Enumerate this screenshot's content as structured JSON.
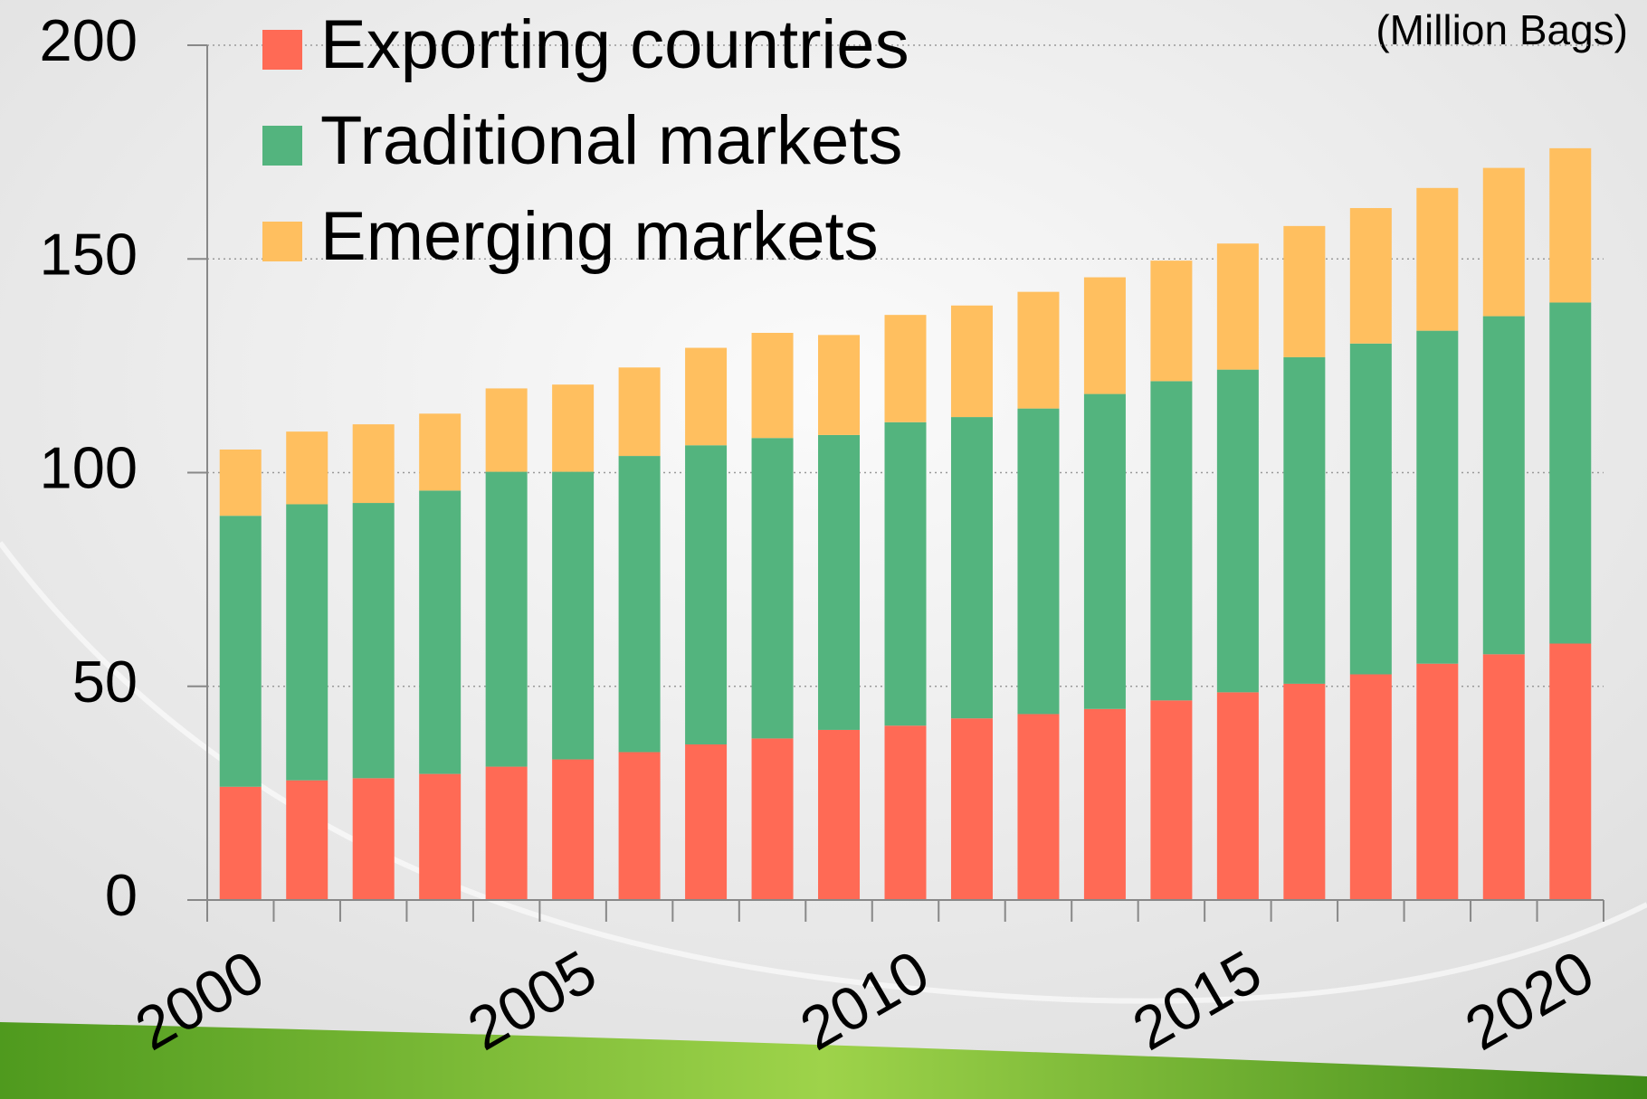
{
  "chart_data": {
    "type": "stacked_bar",
    "annotation": "(Million Bags)",
    "categories": [
      "2000",
      null,
      null,
      null,
      null,
      "2005",
      null,
      null,
      null,
      null,
      "2010",
      null,
      null,
      null,
      null,
      "2015",
      null,
      null,
      null,
      null,
      "2020"
    ],
    "series": [
      {
        "name": "Exporting countries",
        "color": "#ff6a55",
        "values": [
          26.5,
          28,
          28.5,
          29.5,
          31.2,
          32.9,
          34.6,
          36.4,
          37.8,
          39.8,
          40.8,
          42.5,
          43.5,
          44.7,
          46.7,
          48.6,
          50.6,
          52.8,
          55.3,
          57.5,
          60
        ]
      },
      {
        "name": "Traditional markets",
        "color": "#53b47e",
        "values": [
          63.4,
          64.6,
          64.4,
          66.3,
          69,
          67.3,
          69.3,
          70,
          70.3,
          69,
          71,
          70.5,
          71.5,
          73.7,
          74.7,
          75.5,
          76.4,
          77.4,
          77.9,
          79.1,
          79.8
        ]
      },
      {
        "name": "Emerging markets",
        "color": "#ffbf5f",
        "values": [
          15.5,
          17,
          18.4,
          18,
          19.5,
          20.4,
          20.7,
          22.8,
          24.6,
          23.4,
          25.1,
          26.1,
          27.3,
          27.3,
          28.2,
          29.5,
          30.7,
          31.7,
          33.4,
          34.7,
          36.1
        ]
      }
    ],
    "ylim": [
      0,
      200
    ],
    "yticks": [
      0,
      50,
      100,
      150,
      200
    ],
    "grid": true
  }
}
